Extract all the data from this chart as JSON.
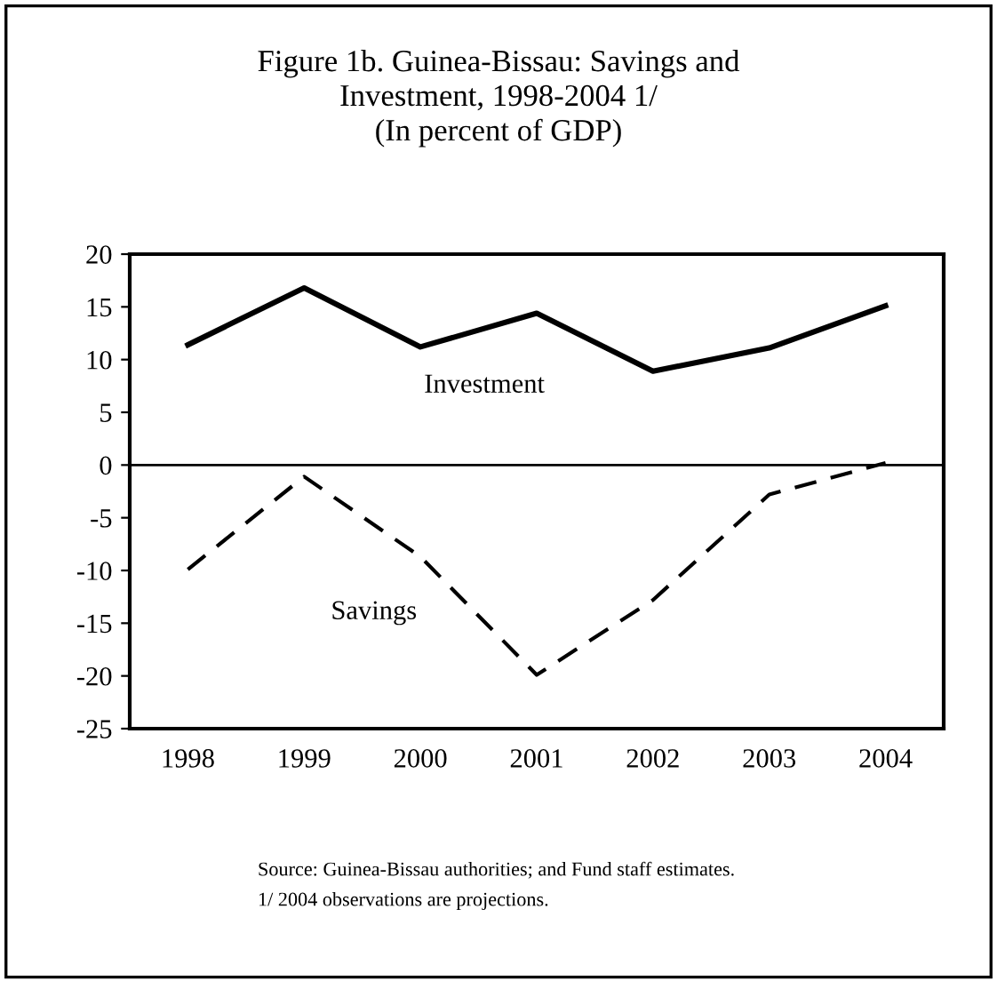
{
  "chart_data": {
    "type": "line",
    "title": "Figure 1b. Guinea-Bissau: Savings and\nInvestment, 1998-2004 1/\n(In percent of GDP)",
    "categories": [
      "1998",
      "1999",
      "2000",
      "2001",
      "2002",
      "2003",
      "2004"
    ],
    "series": [
      {
        "name": "Investment",
        "color": "#000000",
        "line_style": "solid",
        "values": [
          11.4,
          16.8,
          11.2,
          14.4,
          8.9,
          11.1,
          15.1
        ]
      },
      {
        "name": "Savings",
        "color": "#000000",
        "line_style": "dashed",
        "values": [
          -9.9,
          -1.1,
          -8.7,
          -19.9,
          -12.8,
          -2.8,
          0.2
        ]
      }
    ],
    "ylim": [
      -25,
      20
    ],
    "yticks": [
      -25,
      -20,
      -15,
      -10,
      -5,
      0,
      5,
      10,
      15,
      20
    ],
    "ref_lines": [
      {
        "axis": "y",
        "value": 0,
        "color": "#000000"
      }
    ],
    "grid": false,
    "legend": false,
    "marker": "none",
    "annotations": [
      "Source: Guinea-Bissau authorities; and Fund staff estimates.",
      "1/ 2004 observations are projections."
    ]
  }
}
